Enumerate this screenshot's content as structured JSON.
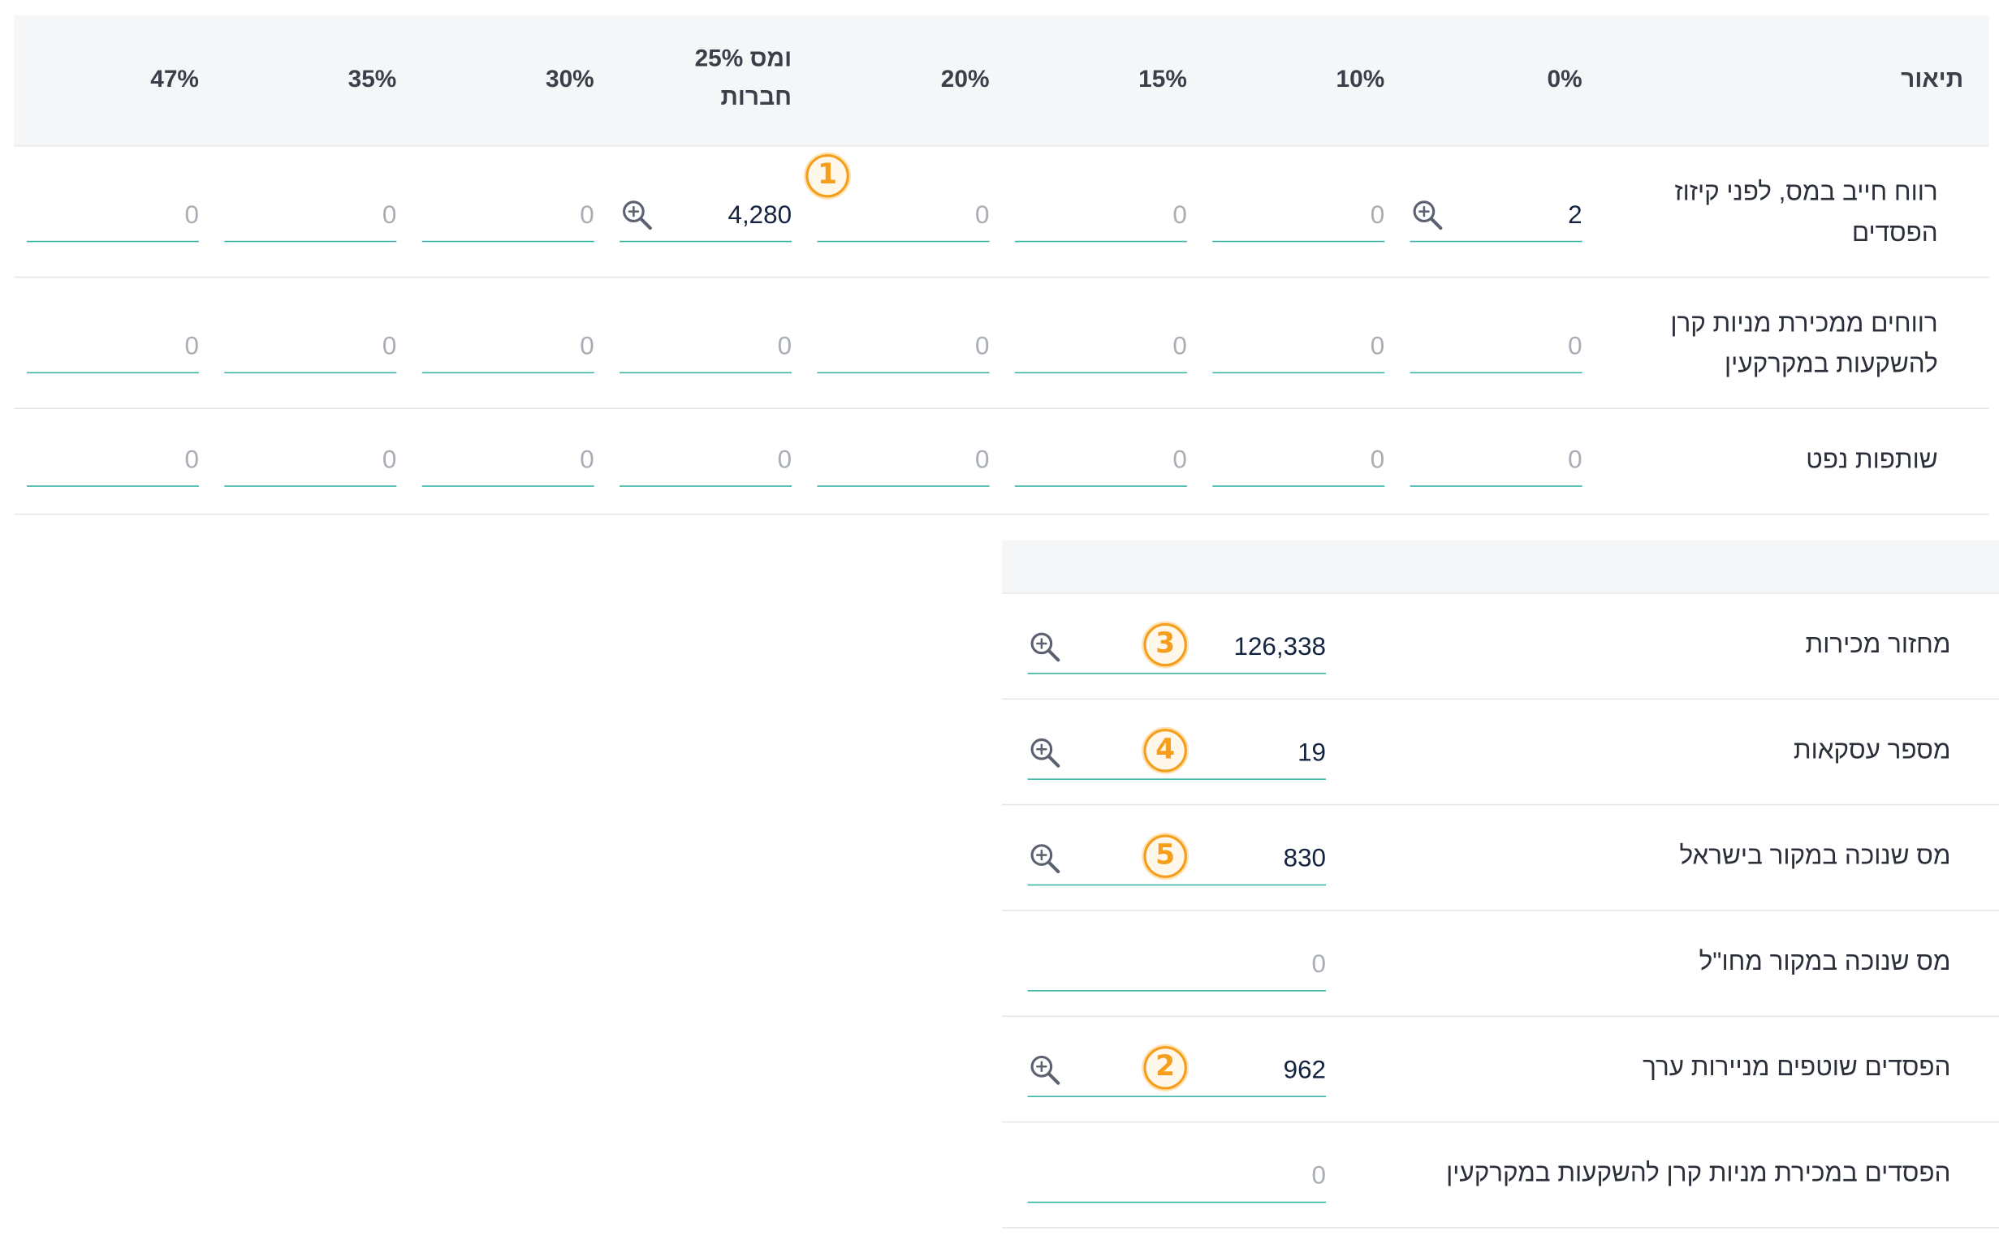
{
  "table": {
    "columns": {
      "desc": "תיאור",
      "p0": "0%",
      "p10": "10%",
      "p15": "15%",
      "p20": "20%",
      "p25_line1": "25% ומס",
      "p25_line2": "חברות",
      "p30": "30%",
      "p35": "35%",
      "p47": "47%"
    },
    "rows": [
      {
        "label": "רווח חייב במס, לפני קיזוז הפסדים",
        "values": [
          "2",
          "0",
          "0",
          "0",
          "4,280",
          "0",
          "0",
          "0"
        ]
      },
      {
        "label": "רווחים ממכירת מניות קרן להשקעות במקרקעין",
        "values": [
          "0",
          "0",
          "0",
          "0",
          "0",
          "0",
          "0",
          "0"
        ]
      },
      {
        "label": "שותפות נפט",
        "values": [
          "0",
          "0",
          "0",
          "0",
          "0",
          "0",
          "0",
          "0"
        ]
      }
    ]
  },
  "panel": {
    "rows": [
      {
        "label": "מחזור מכירות",
        "value": "126,338",
        "badge": "3"
      },
      {
        "label": "מספר עסקאות",
        "value": "19",
        "badge": "4"
      },
      {
        "label": "מס שנוכה במקור בישראל",
        "value": "830",
        "badge": "5"
      },
      {
        "label": "מס שנוכה במקור מחו\"ל",
        "value": "0"
      },
      {
        "label": "הפסדים שוטפים מניירות ערך",
        "value": "962",
        "badge": "2"
      },
      {
        "label": "הפסדים במכירת מניות קרן להשקעות במקרקעין",
        "value": "0"
      }
    ]
  },
  "callouts": {
    "b1": "1"
  },
  "icons": {
    "zoom": "zoom-in-icon"
  },
  "colors": {
    "underline": "#36b3a2",
    "badge": "#f59e1b",
    "header_bg": "#f5f6f8"
  }
}
